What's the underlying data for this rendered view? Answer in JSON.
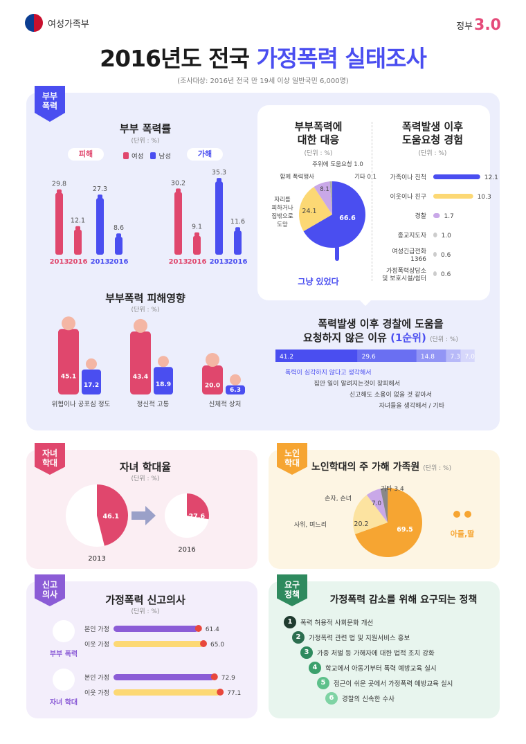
{
  "header": {
    "org": "여성가족부",
    "gov_label": "정부",
    "gov_version": "3.0"
  },
  "title": {
    "part1": "2016년도 전국 ",
    "part2": "가정폭력 실태조사",
    "survey": "(조사대상: 2016년 전국 만 19세 이상 일반국민 6,000명)"
  },
  "couple": {
    "tag": "부부\n폭력",
    "rate": {
      "title": "부부 폭력률",
      "unit": "(단위 : %)",
      "victim_label": "피해",
      "perpetrator_label": "가해",
      "legend_female": "여성",
      "legend_male": "남성",
      "victim": [
        {
          "year": "2013",
          "value": "29.8",
          "v": 29.8,
          "sex": "f"
        },
        {
          "year": "2016",
          "value": "12.1",
          "v": 12.1,
          "sex": "f"
        },
        {
          "year": "2013",
          "value": "27.3",
          "v": 27.3,
          "sex": "m"
        },
        {
          "year": "2016",
          "value": "8.6",
          "v": 8.6,
          "sex": "m"
        }
      ],
      "perp": [
        {
          "year": "2013",
          "value": "30.2",
          "v": 30.2,
          "sex": "f"
        },
        {
          "year": "2016",
          "value": "9.1",
          "v": 9.1,
          "sex": "f"
        },
        {
          "year": "2013",
          "value": "35.3",
          "v": 35.3,
          "sex": "m"
        },
        {
          "year": "2016",
          "value": "11.6",
          "v": 11.6,
          "sex": "m"
        }
      ]
    },
    "impact": {
      "title": "부부폭력 피해영향",
      "unit": "(단위 : %)",
      "items": [
        {
          "label": "위협이나 공포심 정도",
          "female": "45.1",
          "male": "17.2"
        },
        {
          "label": "정신적 고통",
          "female": "43.4",
          "male": "18.9"
        },
        {
          "label": "신체적 상처",
          "female": "20.0",
          "male": "6.3"
        }
      ]
    },
    "response": {
      "title1": "부부폭력에",
      "title2": "대한 대응",
      "unit": "(단위 : %)",
      "center_label": "그냥 있었다",
      "slices": [
        {
          "label": "그냥 있었다",
          "value": "66.6",
          "v": 66.6
        },
        {
          "label": "자리를 피하거나 집밖으로 도망",
          "value": "24.1",
          "v": 24.1
        },
        {
          "label": "함께 폭력행사",
          "value": "8.1",
          "v": 8.1
        },
        {
          "label": "주위에 도움요청",
          "value": "1.0",
          "v": 1.0
        },
        {
          "label": "기타",
          "value": "0.1",
          "v": 0.1
        }
      ],
      "lbl_help": "주위에 도움요청 1.0",
      "lbl_other": "기타 0.1",
      "lbl_fight": "함께 폭력행사",
      "lbl_flee": [
        "자리를",
        "피하거나",
        "집밖으로",
        "도망"
      ]
    },
    "help_request": {
      "title1": "폭력발생 이후",
      "title2": "도움요청 경험",
      "unit": "(단위 : %)",
      "items": [
        {
          "label": "가족이나 친척",
          "value": "12.1",
          "v": 12.1,
          "color": "#4a4ef0"
        },
        {
          "label": "이웃이나 친구",
          "value": "10.3",
          "v": 10.3,
          "color": "#fcd874"
        },
        {
          "label": "경찰",
          "value": "1.7",
          "v": 1.7,
          "color": "#c9a8e8"
        },
        {
          "label": "종교지도자",
          "value": "1.0",
          "v": 1.0,
          "color": "#ccc"
        },
        {
          "label": "여성긴급전화 1366",
          "value": "0.6",
          "v": 0.6,
          "color": "#ccc"
        },
        {
          "label": "가정폭력상담소 및 보호시설/쉼터",
          "value": "0.6",
          "v": 0.6,
          "color": "#ccc"
        }
      ]
    },
    "no_police": {
      "title1": "폭력발생 이후 경찰에 도움을",
      "title2a": "요청하지 않은 이유 ",
      "title2b": "(1순위)",
      "unit": "(단위 : %)",
      "segments": [
        {
          "value": "41.2",
          "v": 41.2,
          "color": "#4a4ef0"
        },
        {
          "value": "29.6",
          "v": 29.6,
          "color": "#6a6ff2"
        },
        {
          "value": "14.8",
          "v": 14.8,
          "color": "#9295f5"
        },
        {
          "value": "7.3",
          "v": 7.3,
          "color": "#b7b9f8"
        },
        {
          "value": "7.0",
          "v": 7.0,
          "color": "#d6d7fb"
        }
      ],
      "reasons": [
        "폭력이 심각하지 않다고 생각해서",
        "집안 일이 알려지는것이 창피해서",
        "신고해도 소용이 없을 것 같아서",
        "자녀들을 생각해서 / 기타"
      ]
    }
  },
  "child": {
    "tag": "자녀\n학대",
    "title": "자녀 학대율",
    "unit": "(단위 : %)",
    "items": [
      {
        "year": "2013",
        "value": "46.1",
        "v": 46.1
      },
      {
        "year": "2016",
        "value": "27.6",
        "v": 27.6
      }
    ]
  },
  "elder": {
    "tag": "노인\n학대",
    "title": "노인학대의 주 가해 가족원",
    "unit": "(단위 : %)",
    "son_label": "아들,딸",
    "slices": [
      {
        "label": "아들,딸",
        "value": "69.5",
        "v": 69.5
      },
      {
        "label": "사위, 며느리",
        "value": "20.2",
        "v": 20.2
      },
      {
        "label": "손자, 손녀",
        "value": "7.0",
        "v": 7.0
      },
      {
        "label": "기타",
        "value": "3.4",
        "v": 3.4
      }
    ],
    "lbl_other": "기타 3.4",
    "lbl_grand": "손자, 손녀",
    "lbl_inlaw": "사위, 며느리"
  },
  "report": {
    "tag": "신고\n의사",
    "title": "가정폭력 신고의사",
    "unit": "(단위 : %)",
    "groups": [
      {
        "name": "부부 폭력",
        "bars": [
          {
            "label": "본인 가정",
            "value": "61.4",
            "v": 61.4,
            "color": "#8b5cd6"
          },
          {
            "label": "이웃 가정",
            "value": "65.0",
            "v": 65.0,
            "color": "#fcd874"
          }
        ]
      },
      {
        "name": "자녀 학대",
        "bars": [
          {
            "label": "본인 가정",
            "value": "72.9",
            "v": 72.9,
            "color": "#8b5cd6"
          },
          {
            "label": "이웃 가정",
            "value": "77.1",
            "v": 77.1,
            "color": "#fcd874"
          }
        ]
      }
    ]
  },
  "policy": {
    "tag": "요구\n정책",
    "title": "가정폭력 감소를 위해 요구되는 정책",
    "items": [
      {
        "num": "1",
        "text": "폭력 허용적 사회문화 개선",
        "color": "#1f3b2f"
      },
      {
        "num": "2",
        "text": "가정폭력 관련 법 및 지원서비스 홍보",
        "color": "#2c6e4f"
      },
      {
        "num": "3",
        "text": "가중 처벌 등 가해자에 대한 법적 조치 강화",
        "color": "#2e8a5e"
      },
      {
        "num": "4",
        "text": "학교에서 아동기부터 폭력 예방교육 실시",
        "color": "#3ba06c"
      },
      {
        "num": "5",
        "text": "접근이 쉬운 곳에서 가정폭력 예방교육 실시",
        "color": "#5dc08a"
      },
      {
        "num": "6",
        "text": "경찰의 신속한 수사",
        "color": "#7fd3a4"
      }
    ]
  },
  "colors": {
    "female": "#e0476d",
    "male": "#4a4ef0",
    "purple": "#8b5cd6",
    "orange": "#f6a532",
    "teal": "#2e8a5e"
  }
}
